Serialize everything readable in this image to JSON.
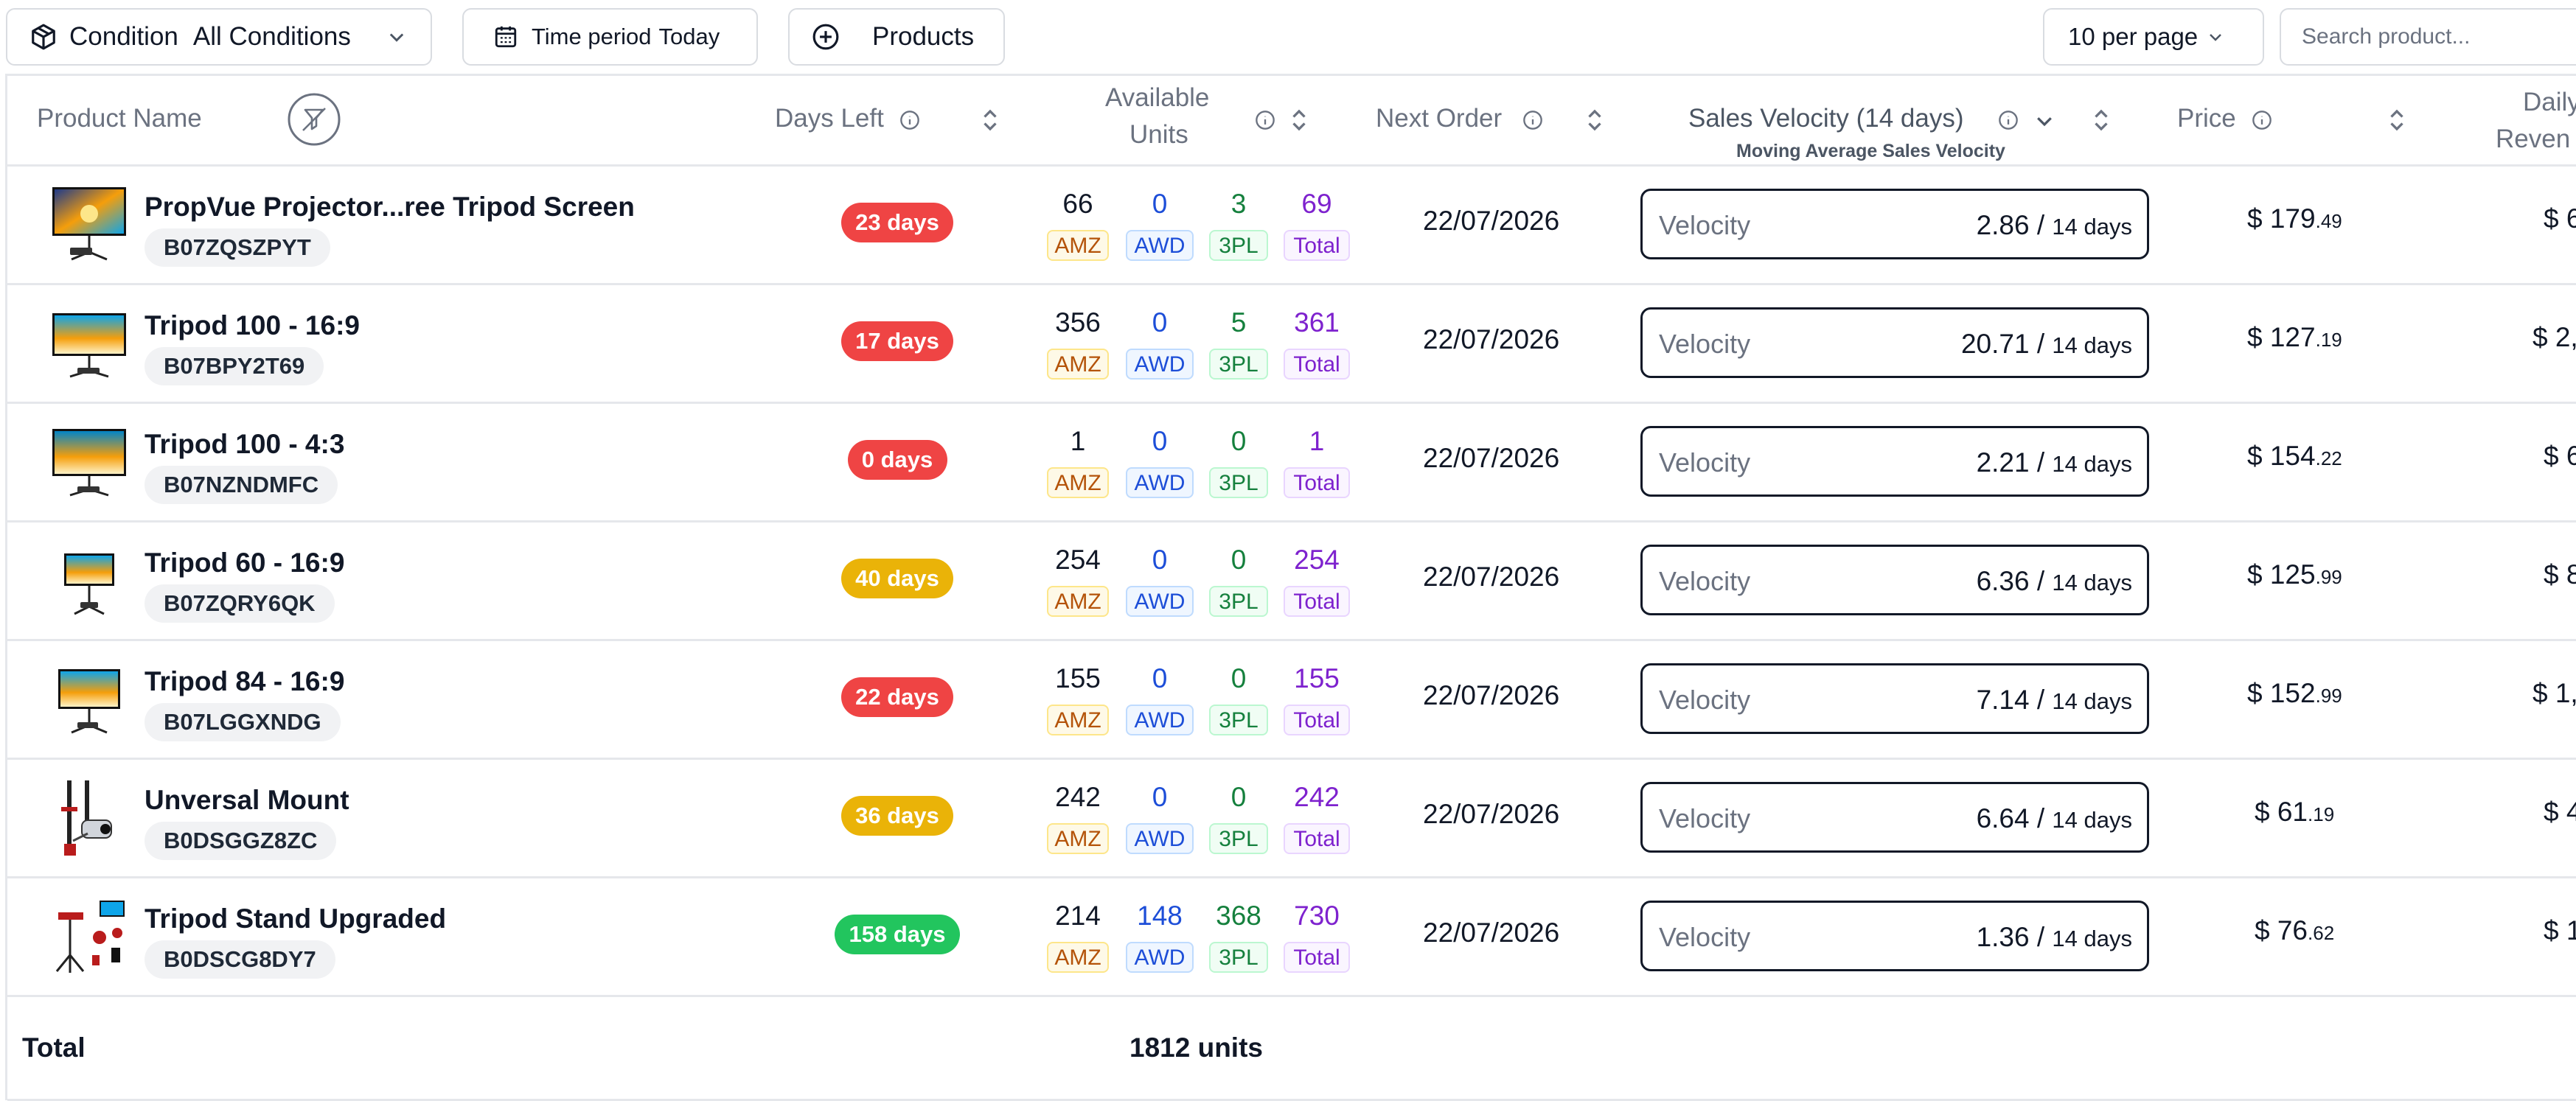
{
  "toolbar": {
    "condition_label": "Condition",
    "condition_value": "All Conditions",
    "time_label": "Time period",
    "time_value": "Today",
    "products_label": "Products",
    "per_page": "10 per page",
    "search_placeholder": "Search product..."
  },
  "headers": {
    "product_name": "Product Name",
    "days_left": "Days Left",
    "available_units_1": "Available",
    "available_units_2": "Units",
    "next_order": "Next Order",
    "sales_velocity": "Sales Velocity (14 days)",
    "sales_velocity_sub": "Moving Average Sales Velocity",
    "price": "Price",
    "daily_revenue_1": "Daily",
    "daily_revenue_2": "Reven"
  },
  "tags": {
    "amz": "AMZ",
    "awd": "AWD",
    "tpl": "3PL",
    "total": "Total",
    "velocity": "Velocity",
    "period": "14 days"
  },
  "colors": {
    "red": "#ef4444",
    "yellow": "#eab308",
    "green": "#22c55e"
  },
  "rows": [
    {
      "name": "PropVue Projector...ree Tripod Screen",
      "sku": "B07ZQSZPYT",
      "days": "23 days",
      "days_color": "red",
      "amz": "66",
      "awd": "0",
      "tpl": "3",
      "total": "69",
      "next": "22/07/2026",
      "velocity": "2.86",
      "price_main": "$ 179",
      "price_cents": ".49",
      "revenue": "$ 6"
    },
    {
      "name": "Tripod 100 - 16:9",
      "sku": "B07BPY2T69",
      "days": "17 days",
      "days_color": "red",
      "amz": "356",
      "awd": "0",
      "tpl": "5",
      "total": "361",
      "next": "22/07/2026",
      "velocity": "20.71",
      "price_main": "$ 127",
      "price_cents": ".19",
      "revenue": "$ 2,"
    },
    {
      "name": "Tripod 100 - 4:3",
      "sku": "B07NZNDMFC",
      "days": "0 days",
      "days_color": "red",
      "amz": "1",
      "awd": "0",
      "tpl": "0",
      "total": "1",
      "next": "22/07/2026",
      "velocity": "2.21",
      "price_main": "$ 154",
      "price_cents": ".22",
      "revenue": "$ 6"
    },
    {
      "name": "Tripod 60 - 16:9",
      "sku": "B07ZQRY6QK",
      "days": "40 days",
      "days_color": "yellow",
      "amz": "254",
      "awd": "0",
      "tpl": "0",
      "total": "254",
      "next": "22/07/2026",
      "velocity": "6.36",
      "price_main": "$ 125",
      "price_cents": ".99",
      "revenue": "$ 8"
    },
    {
      "name": "Tripod 84 - 16:9",
      "sku": "B07LGGXNDG",
      "days": "22 days",
      "days_color": "red",
      "amz": "155",
      "awd": "0",
      "tpl": "0",
      "total": "155",
      "next": "22/07/2026",
      "velocity": "7.14",
      "price_main": "$ 152",
      "price_cents": ".99",
      "revenue": "$ 1,"
    },
    {
      "name": "Unversal Mount",
      "sku": "B0DSGGZ8ZC",
      "days": "36 days",
      "days_color": "yellow",
      "amz": "242",
      "awd": "0",
      "tpl": "0",
      "total": "242",
      "next": "22/07/2026",
      "velocity": "6.64",
      "price_main": "$ 61",
      "price_cents": ".19",
      "revenue": "$ 4"
    },
    {
      "name": "Tripod Stand Upgraded",
      "sku": "B0DSCG8DY7",
      "days": "158 days",
      "days_color": "green",
      "amz": "214",
      "awd": "148",
      "tpl": "368",
      "total": "730",
      "next": "22/07/2026",
      "velocity": "1.36",
      "price_main": "$ 76",
      "price_cents": ".62",
      "revenue": "$ 1"
    }
  ],
  "footer": {
    "label": "Total",
    "units": "1812 units"
  }
}
